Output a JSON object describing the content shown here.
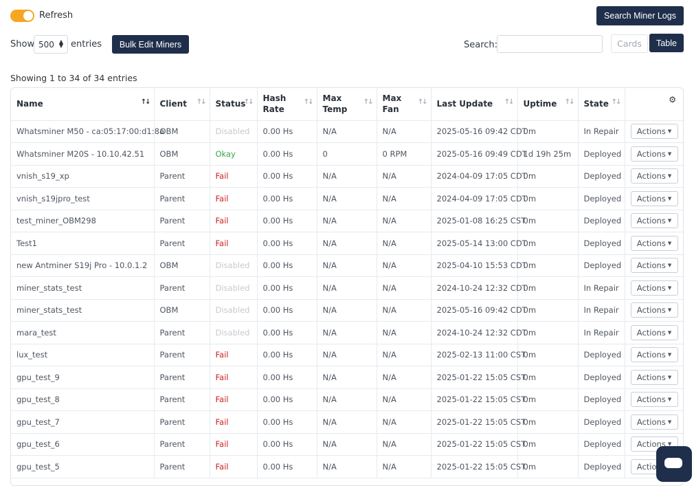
{
  "top": {
    "refresh_label": "Refresh",
    "search_logs_label": "Search Miner Logs"
  },
  "controls": {
    "show_label": "Show",
    "entries_value": "500",
    "entries_label": "entries",
    "bulk_edit_label": "Bulk Edit Miners",
    "search_label": "Search:",
    "search_value": "",
    "cards_label": "Cards",
    "table_label": "Table"
  },
  "summary": "Showing 1 to 34 of 34 entries",
  "table": {
    "columns": [
      {
        "line1": "Name",
        "line2": ""
      },
      {
        "line1": "Client",
        "line2": ""
      },
      {
        "line1": "Status",
        "line2": ""
      },
      {
        "line1": "Hash",
        "line2": "Rate"
      },
      {
        "line1": "Max",
        "line2": "Temp"
      },
      {
        "line1": "Max",
        "line2": "Fan"
      },
      {
        "line1": "Last Update",
        "line2": ""
      },
      {
        "line1": "Uptime",
        "line2": ""
      },
      {
        "line1": "State",
        "line2": ""
      }
    ],
    "actions_label": "Actions",
    "rows": [
      {
        "name": "Whatsminer M50 - ca:05:17:00:d1:8a",
        "client": "OBM",
        "status": "Disabled",
        "status_kind": "disabled",
        "hash": "0.00 Hs",
        "temp": "N/A",
        "fan": "N/A",
        "update": "2025-05-16 09:42 CDT",
        "uptime": "0m",
        "state": "In Repair"
      },
      {
        "name": "Whatsminer M20S - 10.10.42.51",
        "client": "OBM",
        "status": "Okay",
        "status_kind": "okay",
        "hash": "0.00 Hs",
        "temp": "0",
        "fan": "0 RPM",
        "update": "2025-05-16 09:49 CDT",
        "uptime": "1d 19h 25m",
        "state": "Deployed"
      },
      {
        "name": "vnish_s19_xp",
        "client": "Parent",
        "status": "Fail",
        "status_kind": "fail",
        "hash": "0.00 Hs",
        "temp": "N/A",
        "fan": "N/A",
        "update": "2024-04-09 17:05 CDT",
        "uptime": "0m",
        "state": "Deployed"
      },
      {
        "name": "vnish_s19jpro_test",
        "client": "Parent",
        "status": "Fail",
        "status_kind": "fail",
        "hash": "0.00 Hs",
        "temp": "N/A",
        "fan": "N/A",
        "update": "2024-04-09 17:05 CDT",
        "uptime": "0m",
        "state": "Deployed"
      },
      {
        "name": "test_miner_OBM298",
        "client": "Parent",
        "status": "Fail",
        "status_kind": "fail",
        "hash": "0.00 Hs",
        "temp": "N/A",
        "fan": "N/A",
        "update": "2025-01-08 16:25 CST",
        "uptime": "0m",
        "state": "Deployed"
      },
      {
        "name": "Test1",
        "client": "Parent",
        "status": "Fail",
        "status_kind": "fail",
        "hash": "0.00 Hs",
        "temp": "N/A",
        "fan": "N/A",
        "update": "2025-05-14 13:00 CDT",
        "uptime": "0m",
        "state": "Deployed"
      },
      {
        "name": "new Antminer S19j Pro - 10.0.1.2",
        "client": "OBM",
        "status": "Disabled",
        "status_kind": "disabled",
        "hash": "0.00 Hs",
        "temp": "N/A",
        "fan": "N/A",
        "update": "2025-04-10 15:53 CDT",
        "uptime": "0m",
        "state": "Deployed"
      },
      {
        "name": "miner_stats_test",
        "client": "Parent",
        "status": "Disabled",
        "status_kind": "disabled",
        "hash": "0.00 Hs",
        "temp": "N/A",
        "fan": "N/A",
        "update": "2024-10-24 12:32 CDT",
        "uptime": "0m",
        "state": "In Repair"
      },
      {
        "name": "miner_stats_test",
        "client": "OBM",
        "status": "Disabled",
        "status_kind": "disabled",
        "hash": "0.00 Hs",
        "temp": "N/A",
        "fan": "N/A",
        "update": "2025-05-16 09:42 CDT",
        "uptime": "0m",
        "state": "In Repair"
      },
      {
        "name": "mara_test",
        "client": "Parent",
        "status": "Disabled",
        "status_kind": "disabled",
        "hash": "0.00 Hs",
        "temp": "N/A",
        "fan": "N/A",
        "update": "2024-10-24 12:32 CDT",
        "uptime": "0m",
        "state": "In Repair"
      },
      {
        "name": "lux_test",
        "client": "Parent",
        "status": "Fail",
        "status_kind": "fail",
        "hash": "0.00 Hs",
        "temp": "N/A",
        "fan": "N/A",
        "update": "2025-02-13 11:00 CST",
        "uptime": "0m",
        "state": "Deployed"
      },
      {
        "name": "gpu_test_9",
        "client": "Parent",
        "status": "Fail",
        "status_kind": "fail",
        "hash": "0.00 Hs",
        "temp": "N/A",
        "fan": "N/A",
        "update": "2025-01-22 15:05 CST",
        "uptime": "0m",
        "state": "Deployed"
      },
      {
        "name": "gpu_test_8",
        "client": "Parent",
        "status": "Fail",
        "status_kind": "fail",
        "hash": "0.00 Hs",
        "temp": "N/A",
        "fan": "N/A",
        "update": "2025-01-22 15:05 CST",
        "uptime": "0m",
        "state": "Deployed"
      },
      {
        "name": "gpu_test_7",
        "client": "Parent",
        "status": "Fail",
        "status_kind": "fail",
        "hash": "0.00 Hs",
        "temp": "N/A",
        "fan": "N/A",
        "update": "2025-01-22 15:05 CST",
        "uptime": "0m",
        "state": "Deployed"
      },
      {
        "name": "gpu_test_6",
        "client": "Parent",
        "status": "Fail",
        "status_kind": "fail",
        "hash": "0.00 Hs",
        "temp": "N/A",
        "fan": "N/A",
        "update": "2025-01-22 15:05 CST",
        "uptime": "0m",
        "state": "Deployed"
      },
      {
        "name": "gpu_test_5",
        "client": "Parent",
        "status": "Fail",
        "status_kind": "fail",
        "hash": "0.00 Hs",
        "temp": "N/A",
        "fan": "N/A",
        "update": "2025-01-22 15:05 CST",
        "uptime": "0m",
        "state": "Deployed"
      }
    ]
  },
  "colors": {
    "accent": "#1f2f4b",
    "toggle_on": "#f5a623",
    "status_okay": "#3aa54a",
    "status_fail": "#cc1f1f",
    "status_disabled": "#c6cace"
  },
  "icons": {
    "refresh_toggle": "toggle-switch",
    "settings": "gear-icon",
    "chat": "chat-bubble-icon",
    "sort": "sort-arrows-icon",
    "dropdown": "caret-down-icon"
  }
}
